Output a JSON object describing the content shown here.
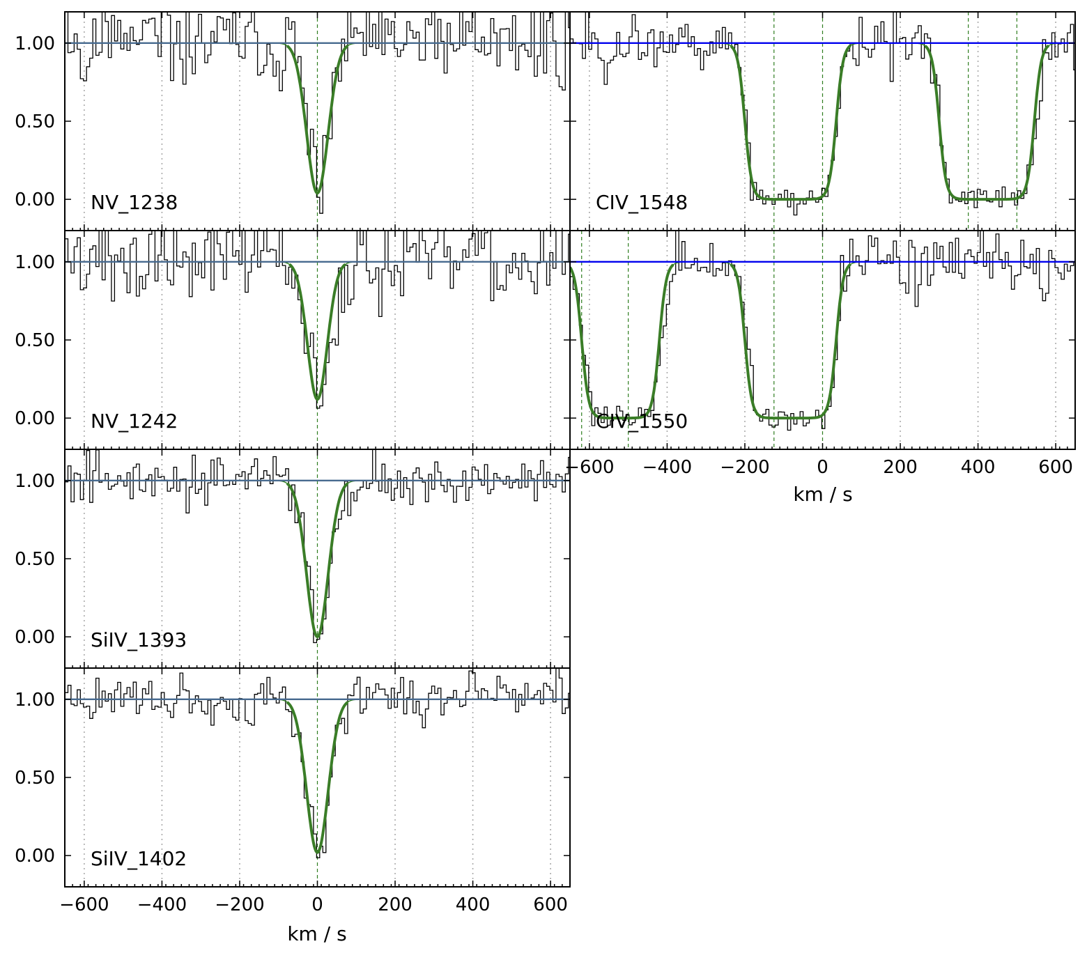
{
  "figure": {
    "xlabel": "km / s"
  },
  "chart_data": [
    {
      "type": "line",
      "ion": "NV_1238",
      "xlim": [
        -650,
        650
      ],
      "ylim": [
        -0.2,
        1.2
      ],
      "yticks": [
        0.0,
        0.5,
        1.0
      ],
      "ytick_labels": [
        "0.00",
        "0.50",
        "1.00"
      ],
      "xticks": [
        -600,
        -400,
        -200,
        0,
        200,
        400,
        600
      ],
      "xtick_labels": [],
      "grid_lines_x": [
        -600,
        -400,
        -200,
        200,
        400,
        600
      ],
      "component_lines_x": [
        0
      ],
      "continuum": 1.0,
      "continuum_color": "steel",
      "model_center": 0,
      "model_min": 0.04,
      "model_halfwidth": 65,
      "error_level": 0.23,
      "error_bumps": [
        {
          "x": -480,
          "h": 0.45,
          "w": 20
        },
        {
          "x": -400,
          "h": 0.1,
          "w": 12
        },
        {
          "x": -130,
          "h": 0.14,
          "w": 10
        }
      ],
      "noise_amp": 0.55,
      "seed": 11
    },
    {
      "type": "line",
      "ion": "CIV_1548",
      "xlim": [
        -650,
        650
      ],
      "ylim": [
        -0.2,
        1.2
      ],
      "yticks": [
        0.0,
        0.5,
        1.0
      ],
      "ytick_labels": [
        "",
        "",
        ""
      ],
      "xticks": [
        -600,
        -400,
        -200,
        0,
        200,
        400,
        600
      ],
      "xtick_labels": [],
      "grid_lines_x": [
        -600,
        -400,
        -200,
        200,
        400,
        600
      ],
      "component_lines_x": [
        -125,
        0,
        375,
        500
      ],
      "continuum": 1.0,
      "continuum_color": "blue",
      "troughs": [
        [
          -230,
          55
        ],
        [
          270,
          565
        ]
      ],
      "error_level": 0.16,
      "error_bumps": [
        {
          "x": -620,
          "h": 0.45,
          "w": 25
        }
      ],
      "noise_amp": 0.35,
      "seed": 23
    },
    {
      "type": "line",
      "ion": "NV_1242",
      "xlim": [
        -650,
        650
      ],
      "ylim": [
        -0.2,
        1.2
      ],
      "yticks": [
        0.0,
        0.5,
        1.0
      ],
      "ytick_labels": [
        "0.00",
        "0.50",
        "1.00"
      ],
      "xticks": [
        -600,
        -400,
        -200,
        0,
        200,
        400,
        600
      ],
      "xtick_labels": [],
      "grid_lines_x": [
        -600,
        -400,
        -200,
        200,
        400,
        600
      ],
      "component_lines_x": [
        0
      ],
      "continuum": 1.0,
      "continuum_color": "steel",
      "model_center": 0,
      "model_min": 0.12,
      "model_halfwidth": 60,
      "error_level": 0.28,
      "error_bumps": [
        {
          "x": -130,
          "h": 0.5,
          "w": 15
        },
        {
          "x": 220,
          "h": 0.55,
          "w": 12
        }
      ],
      "noise_amp": 0.6,
      "seed": 37
    },
    {
      "type": "line",
      "ion": "CIV_1550",
      "xlim": [
        -650,
        650
      ],
      "ylim": [
        -0.2,
        1.2
      ],
      "yticks": [
        0.0,
        0.5,
        1.0
      ],
      "ytick_labels": [
        "",
        "",
        ""
      ],
      "xticks": [
        -600,
        -400,
        -200,
        0,
        200,
        400,
        600
      ],
      "xtick_labels": [
        "−600",
        "−400",
        "−200",
        "0",
        "200",
        "400",
        "600"
      ],
      "grid_lines_x": [
        -600,
        -400,
        -200,
        200,
        400,
        600
      ],
      "component_lines_x": [
        -620,
        -500,
        -125,
        0
      ],
      "continuum": 1.0,
      "continuum_color": "blue",
      "troughs": [
        [
          -650,
          -400
        ],
        [
          -230,
          55
        ]
      ],
      "error_level": 0.16,
      "error_bumps": [
        {
          "x": 300,
          "h": 0.24,
          "w": 18
        },
        {
          "x": 640,
          "h": 0.3,
          "w": 20
        }
      ],
      "noise_amp": 0.35,
      "seed": 41
    },
    {
      "type": "line",
      "ion": "SiIV_1393",
      "xlim": [
        -650,
        650
      ],
      "ylim": [
        -0.2,
        1.2
      ],
      "yticks": [
        0.0,
        0.5,
        1.0
      ],
      "ytick_labels": [
        "0.00",
        "0.50",
        "1.00"
      ],
      "xticks": [
        -600,
        -400,
        -200,
        0,
        200,
        400,
        600
      ],
      "xtick_labels": [],
      "grid_lines_x": [
        -600,
        -400,
        -200,
        200,
        400,
        600
      ],
      "component_lines_x": [
        0
      ],
      "continuum": 1.0,
      "continuum_color": "steel",
      "model_center": 0,
      "model_min": 0.0,
      "model_halfwidth": 65,
      "error_level": 0.17,
      "error_bumps": [
        {
          "x": -630,
          "h": 0.12,
          "w": 20
        }
      ],
      "noise_amp": 0.3,
      "seed": 53
    },
    {
      "type": "line",
      "ion": "SiIV_1402",
      "xlim": [
        -650,
        650
      ],
      "ylim": [
        -0.2,
        1.2
      ],
      "yticks": [
        0.0,
        0.5,
        1.0
      ],
      "ytick_labels": [
        "0.00",
        "0.50",
        "1.00"
      ],
      "xticks": [
        -600,
        -400,
        -200,
        0,
        200,
        400,
        600
      ],
      "xtick_labels": [
        "−600",
        "−400",
        "−200",
        "0",
        "200",
        "400",
        "600"
      ],
      "grid_lines_x": [
        -600,
        -400,
        -200,
        200,
        400,
        600
      ],
      "component_lines_x": [
        0
      ],
      "continuum": 1.0,
      "continuum_color": "steel",
      "model_center": 0,
      "model_min": 0.02,
      "model_halfwidth": 65,
      "error_level": 0.18,
      "error_bumps": [],
      "noise_amp": 0.3,
      "seed": 67
    }
  ]
}
